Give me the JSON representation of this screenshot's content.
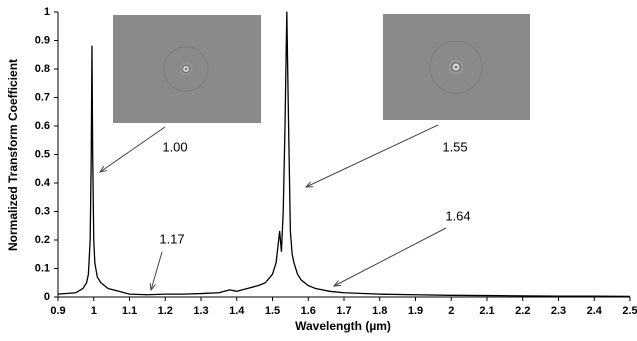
{
  "chart_data": {
    "type": "line",
    "x_label": "Wavelength (µm)",
    "y_label": "Normalized Transform Coefficient",
    "xlim": [
      0.9,
      2.5
    ],
    "ylim": [
      0,
      1
    ],
    "xticks": [
      0.9,
      1,
      1.1,
      1.2,
      1.3,
      1.4,
      1.5,
      1.6,
      1.7,
      1.8,
      1.9,
      2,
      2.1,
      2.2,
      2.3,
      2.4,
      2.5
    ],
    "yticks": [
      0,
      0.1,
      0.2,
      0.3,
      0.4,
      0.5,
      0.6,
      0.7,
      0.8,
      0.9,
      1
    ],
    "x": [
      0.9,
      0.95,
      0.97,
      0.98,
      0.985,
      0.99,
      0.993,
      0.995,
      0.997,
      1.0,
      1.003,
      1.01,
      1.02,
      1.04,
      1.07,
      1.1,
      1.15,
      1.2,
      1.25,
      1.3,
      1.35,
      1.38,
      1.4,
      1.43,
      1.46,
      1.48,
      1.5,
      1.51,
      1.52,
      1.525,
      1.53,
      1.535,
      1.54,
      1.545,
      1.55,
      1.555,
      1.56,
      1.57,
      1.58,
      1.6,
      1.62,
      1.64,
      1.66,
      1.7,
      1.8,
      1.9,
      2.0,
      2.1,
      2.2,
      2.3,
      2.4,
      2.5
    ],
    "series": [
      {
        "color": "#000000",
        "values": [
          0.01,
          0.015,
          0.03,
          0.05,
          0.08,
          0.2,
          0.5,
          0.88,
          0.5,
          0.2,
          0.12,
          0.07,
          0.05,
          0.03,
          0.02,
          0.01,
          0.008,
          0.01,
          0.01,
          0.012,
          0.015,
          0.025,
          0.02,
          0.03,
          0.04,
          0.05,
          0.08,
          0.12,
          0.23,
          0.16,
          0.3,
          0.6,
          1.0,
          0.6,
          0.23,
          0.15,
          0.12,
          0.08,
          0.06,
          0.04,
          0.03,
          0.025,
          0.02,
          0.015,
          0.01,
          0.008,
          0.006,
          0.005,
          0.004,
          0.003,
          0.003,
          0.002
        ]
      }
    ],
    "annotations": [
      "1.00",
      "1.17",
      "1.55",
      "1.64"
    ]
  }
}
